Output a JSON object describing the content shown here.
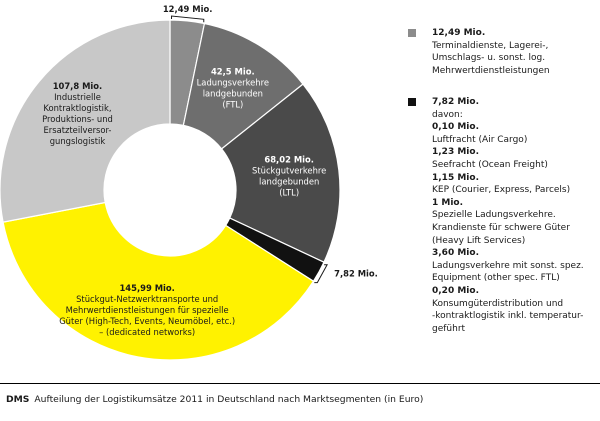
{
  "chart_data": {
    "type": "donut",
    "unit": "Mio.",
    "start_angle_deg": 0,
    "slices": [
      {
        "id": "terminal",
        "value": 12.49,
        "value_label": "12,49 Mio.",
        "text": [],
        "color": "#8c8c8c",
        "label_side": "outside-top"
      },
      {
        "id": "ftl",
        "value": 42.5,
        "value_label": "42,5 Mio.",
        "text": [
          "Ladungsverkehre",
          "landgebunden",
          "(FTL)"
        ],
        "color": "#6e6e6e",
        "text_color": "#ffffff"
      },
      {
        "id": "ltl",
        "value": 68.02,
        "value_label": "68,02 Mio.",
        "text": [
          "Stückgutverkehre",
          "landgebunden",
          "(LTL)"
        ],
        "color": "#4a4a4a",
        "text_color": "#ffffff"
      },
      {
        "id": "sonstige",
        "value": 7.82,
        "value_label": "7,82 Mio.",
        "text": [],
        "color": "#111111",
        "label_side": "outside-right"
      },
      {
        "id": "netzwerk",
        "value": 145.99,
        "value_label": "145,99 Mio.",
        "text": [
          "Stückgut-Netzwerktransporte und",
          "Mehrwertdienstleistungen für spezielle",
          "Güter (High-Tech, Events, Neumöbel, etc.)",
          "– (dedicated networks)"
        ],
        "color": "#fff200",
        "text_color": "#1a1a1a"
      },
      {
        "id": "kontrakt",
        "value": 107.8,
        "value_label": "107,8 Mio.",
        "text": [
          "Industrielle",
          "Kontraktlogistik,",
          "Produktions- und",
          "Ersatzteilversor-",
          "gungslogistik"
        ],
        "color": "#c8c8c8",
        "text_color": "#1a1a1a"
      }
    ]
  },
  "legend": {
    "terminal": {
      "color": "#8c8c8c",
      "value": "12,49 Mio.",
      "lines": [
        "Terminaldienste, Lagerei-,",
        "Umschlags- u. sonst. log.",
        "Mehrwertdienstleistungen"
      ]
    },
    "sonstige": {
      "color": "#111111",
      "value": "7,82 Mio.",
      "intro": "davon:",
      "items": [
        {
          "value": "0,10 Mio.",
          "lines": [
            "Luftfracht (Air Cargo)"
          ]
        },
        {
          "value": "1,23 Mio.",
          "lines": [
            "Seefracht (Ocean Freight)"
          ]
        },
        {
          "value": "1,15 Mio.",
          "lines": [
            "KEP (Courier, Express, Parcels)"
          ]
        },
        {
          "value": "1 Mio.",
          "lines": [
            "Spezielle Ladungsverkehre.",
            "Krandienste für schwere Güter",
            "(Heavy Lift Services)"
          ]
        },
        {
          "value": "3,60 Mio.",
          "lines": [
            "Ladungsverkehre mit sonst. spez.",
            "Equipment (other spec. FTL)"
          ]
        },
        {
          "value": "0,20 Mio.",
          "lines": [
            "Konsumgüterdistribution und",
            "-kontraktlogistik inkl. temperatur-",
            "geführt"
          ]
        }
      ]
    }
  },
  "caption": {
    "source": "DMS",
    "text": "Aufteilung der Logistikumsätze 2011 in Deutschland nach Marktsegmenten (in Euro)"
  }
}
